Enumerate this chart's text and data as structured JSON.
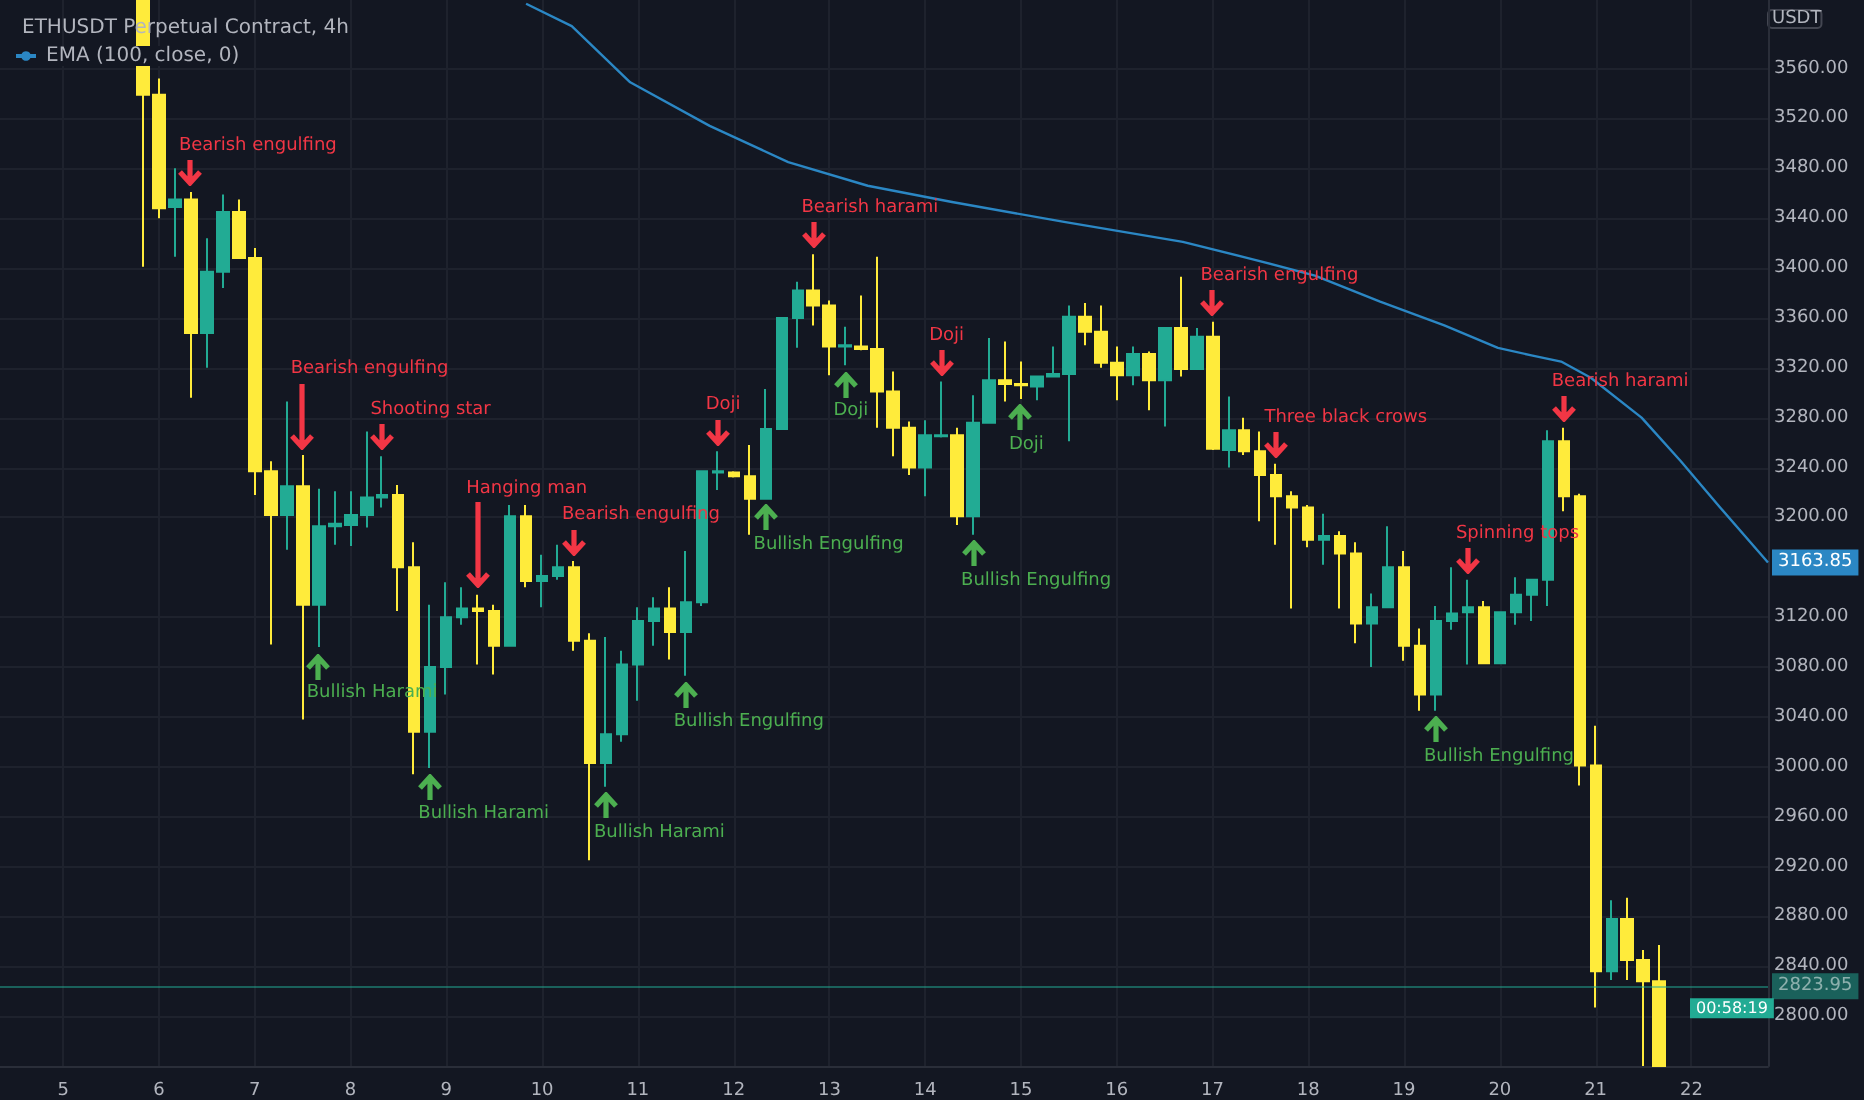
{
  "chart_data": {
    "type": "candlestick",
    "title": "ETHUSDT Perpetual Contract, 4h",
    "ylabel": "USDT",
    "xlim": [
      4.34,
      22.8
    ],
    "xticks": [
      5,
      6,
      7,
      8,
      9,
      10,
      11,
      12,
      13,
      14,
      15,
      16,
      17,
      18,
      19,
      20,
      21,
      22
    ],
    "ylim": [
      2760,
      3615
    ],
    "yticks": [
      {
        "value": 2800,
        "label": "2800.00"
      },
      {
        "value": 2840,
        "label": "2840.00"
      },
      {
        "value": 2880,
        "label": "2880.00"
      },
      {
        "value": 2920,
        "label": "2920.00"
      },
      {
        "value": 2960,
        "label": "2960.00"
      },
      {
        "value": 3000,
        "label": "3000.00"
      },
      {
        "value": 3040,
        "label": "3040.00"
      },
      {
        "value": 3080,
        "label": "3080.00"
      },
      {
        "value": 3120,
        "label": "3120.00"
      },
      {
        "value": 3200,
        "label": "3200.00"
      },
      {
        "value": 3240,
        "label": "3240.00"
      },
      {
        "value": 3280,
        "label": "3280.00"
      },
      {
        "value": 3320,
        "label": "3320.00"
      },
      {
        "value": 3360,
        "label": "3360.00"
      },
      {
        "value": 3400,
        "label": "3400.00"
      },
      {
        "value": 3440,
        "label": "3440.00"
      },
      {
        "value": 3480,
        "label": "3480.00"
      },
      {
        "value": 3520,
        "label": "3520.00"
      },
      {
        "value": 3560,
        "label": "3560.00"
      }
    ],
    "grid": true,
    "legend": "top left",
    "series": [
      {
        "colors": [
          "#ffeb3b",
          "#ffeb3b",
          "#22ab94",
          "#ffeb3b",
          "#22ab94",
          "#22ab94",
          "#ffeb3b",
          "#ffeb3b",
          "#ffeb3b",
          "#22ab94",
          "#ffeb3b",
          "#22ab94",
          "#22ab94",
          "#22ab94",
          "#22ab94",
          "#22ab94",
          "#ffeb3b",
          "#ffeb3b",
          "#22ab94",
          "#22ab94",
          "#22ab94",
          "#ffeb3b",
          "#ffeb3b",
          "#22ab94",
          "#ffeb3b",
          "#22ab94",
          "#22ab94",
          "#ffeb3b",
          "#ffeb3b",
          "#22ab94",
          "#22ab94",
          "#22ab94",
          "#22ab94",
          "#ffeb3b",
          "#22ab94",
          "#22ab94",
          "#22ab94",
          "#ffeb3b",
          "#ffeb3b",
          "#22ab94",
          "#22ab94",
          "#22ab94",
          "#ffeb3b",
          "#ffeb3b",
          "#22ab94",
          "#ffeb3b",
          "#ffeb3b",
          "#ffeb3b",
          "#ffeb3b",
          "#22ab94",
          "#22ab94",
          "#ffeb3b",
          "#22ab94",
          "#22ab94",
          "#ffeb3b",
          "#ffeb3b",
          "#22ab94",
          "#22ab94",
          "#22ab94",
          "#ffeb3b",
          "#ffeb3b",
          "#ffeb3b",
          "#22ab94",
          "#ffeb3b",
          "#22ab94",
          "#ffeb3b",
          "#22ab94",
          "#ffeb3b",
          "#22ab94",
          "#ffeb3b",
          "#ffeb3b",
          "#ffeb3b",
          "#ffeb3b",
          "#ffeb3b",
          "#22ab94",
          "#ffeb3b",
          "#ffeb3b",
          "#22ab94",
          "#22ab94",
          "#ffeb3b",
          "#ffeb3b",
          "#22ab94",
          "#22ab94",
          "#22ab94",
          "#ffeb3b",
          "#22ab94",
          "#22ab94",
          "#22ab94",
          "#22ab94",
          "#ffeb3b",
          "#ffeb3b",
          "#ffeb3b",
          "#22ab94",
          "#ffeb3b",
          "#ffeb3b",
          "#ffeb3b"
        ],
        "x": [
          5.833,
          6,
          6.167,
          6.333,
          6.5,
          6.667,
          6.833,
          7,
          7.167,
          7.333,
          7.5,
          7.667,
          7.833,
          8,
          8.167,
          8.333,
          8.5,
          8.667,
          8.833,
          9,
          9.167,
          9.333,
          9.5,
          9.667,
          9.833,
          10,
          10.167,
          10.333,
          10.5,
          10.667,
          10.833,
          11,
          11.167,
          11.333,
          11.5,
          11.667,
          11.833,
          12,
          12.167,
          12.333,
          12.5,
          12.667,
          12.833,
          13,
          13.167,
          13.333,
          13.5,
          13.667,
          13.833,
          14,
          14.167,
          14.333,
          14.5,
          14.667,
          14.833,
          15,
          15.167,
          15.333,
          15.5,
          15.667,
          15.833,
          16,
          16.167,
          16.333,
          16.5,
          16.667,
          16.833,
          17,
          17.167,
          17.333,
          17.5,
          17.667,
          17.833,
          18,
          18.167,
          18.333,
          18.5,
          18.667,
          18.833,
          19,
          19.167,
          19.333,
          19.5,
          19.667,
          19.833,
          20,
          20.167,
          20.333,
          20.5,
          20.667,
          20.833,
          21,
          21.167,
          21.333,
          21.5,
          21.667
        ],
        "ohlc": [
          [
            3615,
            3615,
            3401,
            3539
          ],
          [
            3539,
            3552,
            3440,
            3448
          ],
          [
            3449,
            3480,
            3409,
            3455
          ],
          [
            3455,
            3461,
            3296,
            3348
          ],
          [
            3348,
            3424,
            3320,
            3397
          ],
          [
            3397,
            3459,
            3384,
            3445
          ],
          [
            3445,
            3455,
            3408,
            3408
          ],
          [
            3408,
            3416,
            3218,
            3237
          ],
          [
            3237,
            3245,
            3098,
            3202
          ],
          [
            3202,
            3293,
            3174,
            3225
          ],
          [
            3225,
            3250,
            3038,
            3130
          ],
          [
            3130,
            3223,
            3096,
            3193
          ],
          [
            3193,
            3221,
            3178,
            3195
          ],
          [
            3194,
            3221,
            3177,
            3202
          ],
          [
            3202,
            3269,
            3192,
            3216
          ],
          [
            3216,
            3249,
            3208,
            3218
          ],
          [
            3218,
            3226,
            3125,
            3160
          ],
          [
            3160,
            3180,
            2994,
            3028
          ],
          [
            3028,
            3130,
            2999,
            3080
          ],
          [
            3080,
            3148,
            3058,
            3120
          ],
          [
            3120,
            3144,
            3114,
            3127
          ],
          [
            3127,
            3138,
            3082,
            3125
          ],
          [
            3125,
            3130,
            3074,
            3097
          ],
          [
            3097,
            3210,
            3097,
            3201
          ],
          [
            3201,
            3210,
            3144,
            3149
          ],
          [
            3149,
            3170,
            3128,
            3153
          ],
          [
            3153,
            3178,
            3150,
            3160
          ],
          [
            3160,
            3165,
            3093,
            3101
          ],
          [
            3101,
            3107,
            2925,
            3003
          ],
          [
            3003,
            3104,
            2984,
            3026
          ],
          [
            3026,
            3093,
            3020,
            3082
          ],
          [
            3082,
            3128,
            3053,
            3117
          ],
          [
            3117,
            3136,
            3097,
            3127
          ],
          [
            3127,
            3144,
            3086,
            3108
          ],
          [
            3108,
            3173,
            3073,
            3132
          ],
          [
            3132,
            3237,
            3129,
            3237
          ],
          [
            3236,
            3253,
            3222,
            3237
          ],
          [
            3236,
            3237,
            3232,
            3233
          ],
          [
            3233,
            3258,
            3186,
            3215
          ],
          [
            3215,
            3303,
            3215,
            3271
          ],
          [
            3271,
            3360,
            3271,
            3360
          ],
          [
            3360,
            3389,
            3336,
            3382
          ],
          [
            3382,
            3411,
            3354,
            3370
          ],
          [
            3370,
            3374,
            3314,
            3337
          ],
          [
            3337,
            3353,
            3322,
            3338
          ],
          [
            3337,
            3378,
            3334,
            3335
          ],
          [
            3335,
            3409,
            3272,
            3301
          ],
          [
            3301,
            3317,
            3249,
            3272
          ],
          [
            3272,
            3277,
            3234,
            3240
          ],
          [
            3240,
            3278,
            3217,
            3266
          ],
          [
            3265,
            3309,
            3264,
            3266
          ],
          [
            3266,
            3272,
            3194,
            3201
          ],
          [
            3201,
            3298,
            3186,
            3276
          ],
          [
            3276,
            3344,
            3276,
            3310
          ],
          [
            3310,
            3341,
            3293,
            3307
          ],
          [
            3307,
            3325,
            3295,
            3306
          ],
          [
            3305,
            3313,
            3294,
            3313
          ],
          [
            3313,
            3337,
            3313,
            3315
          ],
          [
            3315,
            3370,
            3261,
            3361
          ],
          [
            3361,
            3372,
            3338,
            3349
          ],
          [
            3349,
            3370,
            3320,
            3324
          ],
          [
            3324,
            3337,
            3294,
            3314
          ],
          [
            3314,
            3337,
            3306,
            3331
          ],
          [
            3331,
            3333,
            3286,
            3310
          ],
          [
            3310,
            3352,
            3273,
            3352
          ],
          [
            3352,
            3393,
            3313,
            3319
          ],
          [
            3319,
            3352,
            3319,
            3345
          ],
          [
            3345,
            3357,
            3254,
            3255
          ],
          [
            3254,
            3297,
            3240,
            3270
          ],
          [
            3270,
            3280,
            3250,
            3253
          ],
          [
            3253,
            3269,
            3197,
            3234
          ],
          [
            3234,
            3243,
            3178,
            3217
          ],
          [
            3217,
            3221,
            3127,
            3208
          ],
          [
            3208,
            3210,
            3176,
            3182
          ],
          [
            3182,
            3203,
            3162,
            3185
          ],
          [
            3185,
            3189,
            3127,
            3171
          ],
          [
            3171,
            3180,
            3099,
            3115
          ],
          [
            3115,
            3139,
            3080,
            3128
          ],
          [
            3128,
            3193,
            3128,
            3160
          ],
          [
            3160,
            3173,
            3085,
            3097
          ],
          [
            3097,
            3111,
            3045,
            3058
          ],
          [
            3058,
            3129,
            3045,
            3117
          ],
          [
            3117,
            3160,
            3110,
            3123
          ],
          [
            3124,
            3150,
            3082,
            3128
          ],
          [
            3128,
            3133,
            3083,
            3083
          ],
          [
            3083,
            3124,
            3083,
            3124
          ],
          [
            3124,
            3152,
            3114,
            3138
          ],
          [
            3138,
            3150,
            3117,
            3150
          ],
          [
            3150,
            3270,
            3129,
            3261
          ],
          [
            3261,
            3272,
            3205,
            3217
          ],
          [
            3217,
            3219,
            2985,
            3001
          ],
          [
            3001,
            3033,
            2807,
            2836
          ],
          [
            2836,
            2893,
            2829,
            2878
          ],
          [
            2878,
            2895,
            2829,
            2845
          ],
          [
            2845,
            2853,
            2760,
            2828
          ],
          [
            2828,
            2857,
            2760,
            2760
          ]
        ]
      },
      {
        "type": "line",
        "name": "EMA (100, close, 0)",
        "color": "#2b87c4",
        "x": [
          9.833,
          10.31,
          10.92,
          11.75,
          12.57,
          13.4,
          14.28,
          15.45,
          16.69,
          17.37,
          18.07,
          18.75,
          19.42,
          19.98,
          20.33,
          20.64,
          20.95,
          21.48,
          21.89,
          22.3,
          22.8
        ],
        "values": [
          3612,
          3594,
          3549,
          3514,
          3485,
          3466,
          3453,
          3437,
          3421,
          3408,
          3394,
          3373,
          3354,
          3336,
          3330,
          3325,
          3312,
          3280,
          3245,
          3208,
          3163.85
        ],
        "value_labels": [
          null,
          null,
          null,
          null,
          null,
          null,
          null,
          null,
          null,
          null,
          null,
          null,
          null,
          null,
          null,
          null,
          null,
          null,
          null,
          null,
          "3163.85"
        ]
      }
    ],
    "ref_lines": [
      {
        "axis": "y",
        "value": 2823.95,
        "label": "2823.95",
        "color": "#22ab94"
      }
    ],
    "annotations": [
      "00:58:19",
      {
        "text": "Bearish engulfing",
        "x": 6.333,
        "y": 3461
      },
      {
        "text": "Bearish engulfing",
        "x": 7.5,
        "y": 3250
      },
      {
        "text": "Shooting star",
        "x": 8.333,
        "y": 3249
      },
      {
        "text": "Hanging man",
        "x": 9.333,
        "y": 3138
      },
      {
        "text": "Bearish engulfing",
        "x": 10.333,
        "y": 3165
      },
      {
        "text": "Bearish harami",
        "x": 12.833,
        "y": 3411
      },
      {
        "text": "Bearish engulfing",
        "x": 17,
        "y": 3357
      },
      {
        "text": "Three black crows",
        "x": 17.667,
        "y": 3243
      },
      {
        "text": "Bearish harami",
        "x": 20.667,
        "y": 3272
      },
      {
        "text": "Bullish Harami",
        "x": 7.667,
        "y": 3096
      },
      {
        "text": "Bullish Harami",
        "x": 8.833,
        "y": 2999
      },
      {
        "text": "Bullish Harami",
        "x": 10.667,
        "y": 2984
      },
      {
        "text": "Bullish Engulfing",
        "x": 11.5,
        "y": 3073
      },
      {
        "text": "Bullish Engulfing",
        "x": 12.333,
        "y": 3215
      },
      {
        "text": "Bullish Engulfing",
        "x": 14.5,
        "y": 3186
      },
      {
        "text": "Bullish Engulfing",
        "x": 19.333,
        "y": 3045
      },
      {
        "text": "Doji",
        "x": 11.833,
        "y": 3253
      },
      {
        "text": "Doji",
        "x": 13.167,
        "y": 3322
      },
      {
        "text": "Doji",
        "x": 14.167,
        "y": 3309
      },
      {
        "text": "Doji",
        "x": 15,
        "y": 3295
      },
      {
        "text": "Spinning tops",
        "x": 19.667,
        "y": 3150
      }
    ]
  }
}
